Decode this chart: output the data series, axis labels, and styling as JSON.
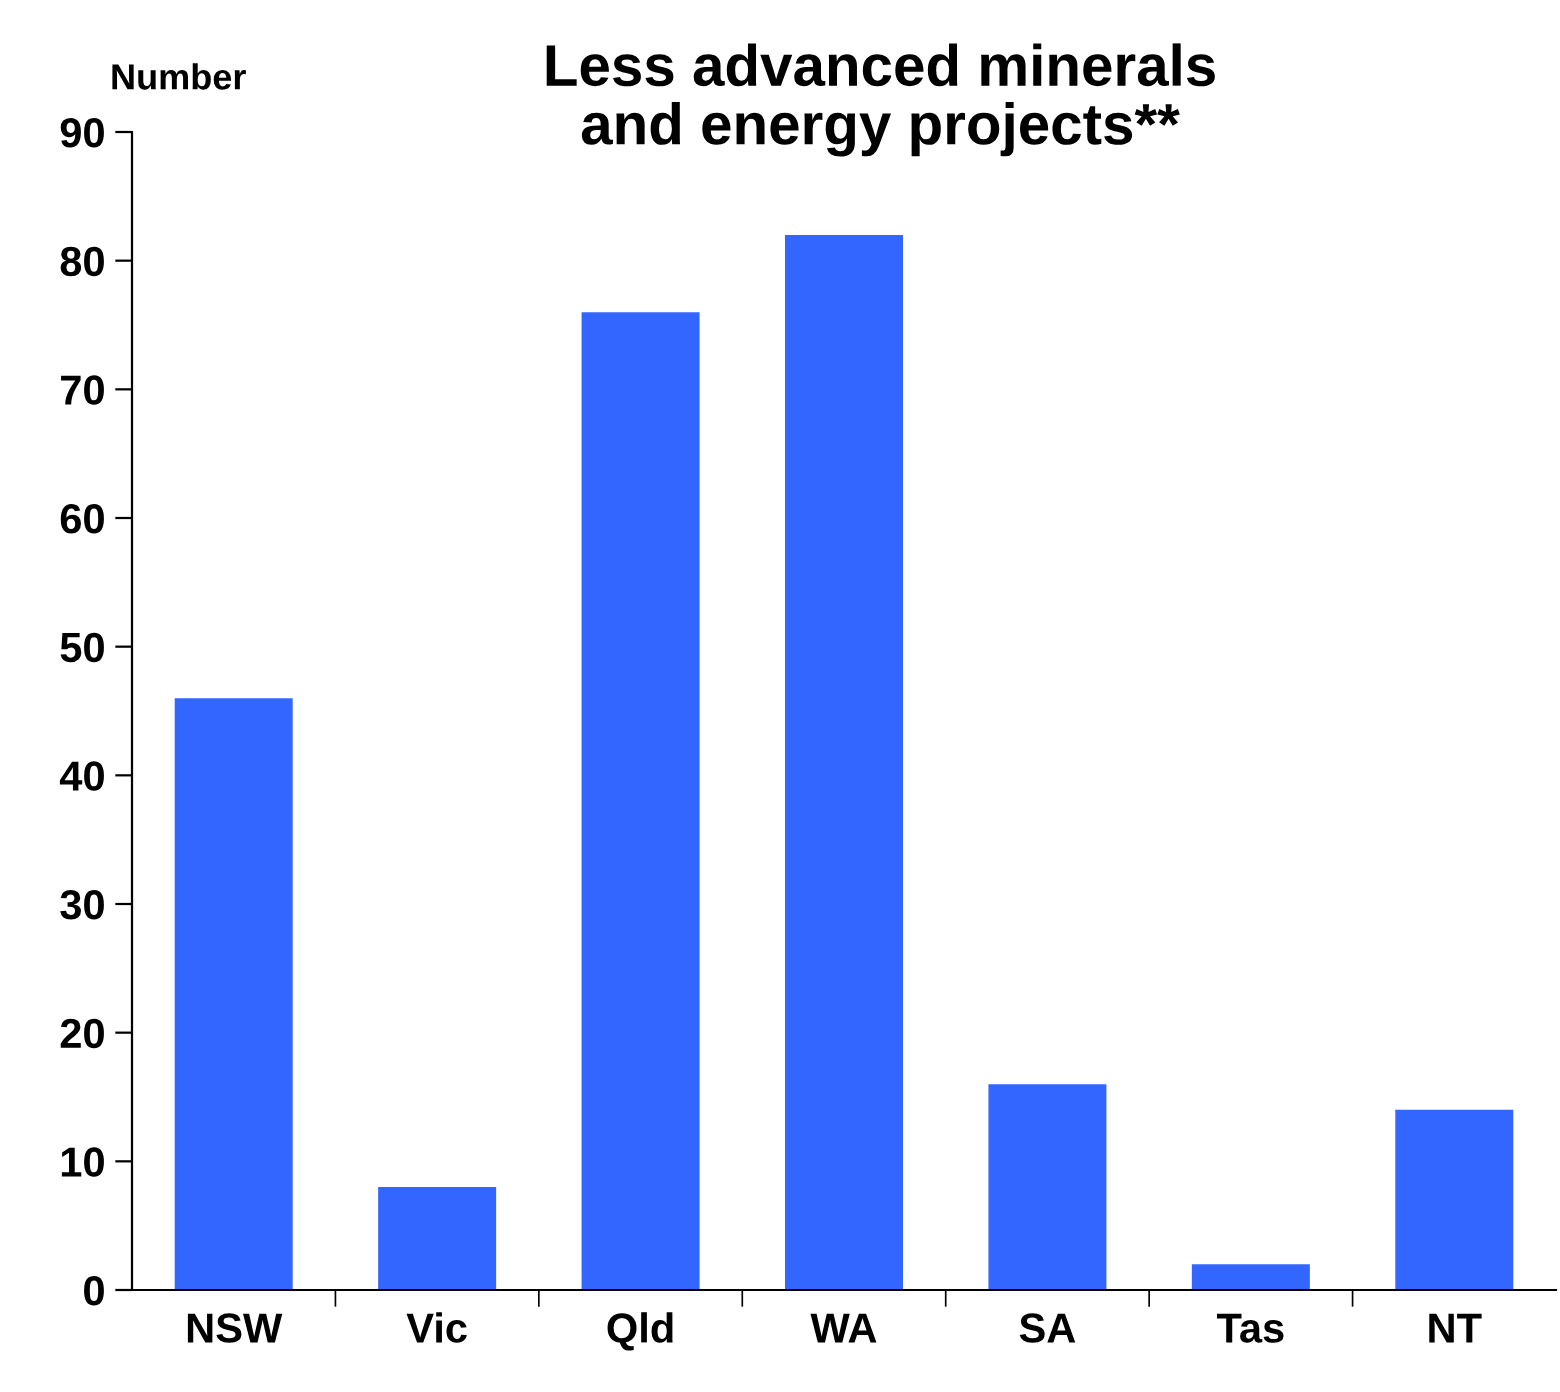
{
  "chart_data": {
    "type": "bar",
    "title": "Less advanced minerals\nand energy projects**",
    "ylabel": "Number",
    "categories": [
      "NSW",
      "Vic",
      "Qld",
      "WA",
      "SA",
      "Tas",
      "NT"
    ],
    "values": [
      46,
      8,
      76,
      82,
      16,
      2,
      14
    ],
    "color": "#3366ff",
    "ylim": [
      0,
      90
    ],
    "yticks": [
      0,
      10,
      20,
      30,
      40,
      50,
      60,
      70,
      80,
      90
    ],
    "grid": false,
    "legend": false
  }
}
